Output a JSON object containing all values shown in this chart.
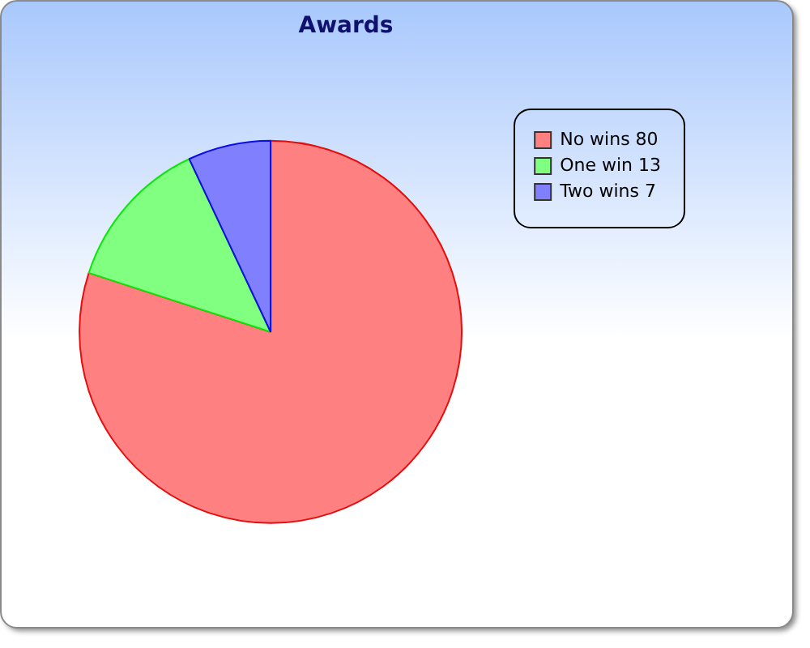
{
  "chart_data": {
    "type": "pie",
    "title": "Awards",
    "categories": [
      "No wins 80",
      "One win 13",
      "Two wins 7"
    ],
    "values": [
      80,
      13,
      7
    ],
    "colors": [
      "#ff8080",
      "#80ff80",
      "#8080ff"
    ],
    "legend": "top right"
  }
}
